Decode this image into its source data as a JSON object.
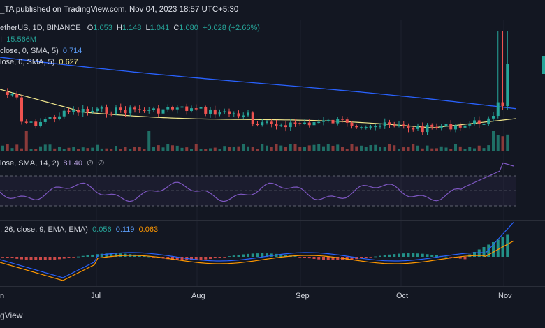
{
  "header": {
    "published": "_TA published on TradingView.com, Nov 04, 2023 18:57 UTC+5:30",
    "symbol": "etherUS, 1D, BINANCE",
    "o_label": "O",
    "o": "1.053",
    "h_label": "H",
    "h": "1.148",
    "l_label": "L",
    "l": "1.041",
    "c_label": "C",
    "c": "1.080",
    "change": "+0.028 (+2.66%)",
    "vol_label": "I",
    "vol": "15.566M",
    "sma1_label": "close, 0, SMA, 5)",
    "sma1_value": "0.714",
    "sma2_label": "lose, 0, SMA, 5)",
    "sma2_value": "0.627"
  },
  "rsi": {
    "label": "lose, SMA, 14, 2)",
    "value": "81.40",
    "extra1": "∅",
    "extra2": "∅"
  },
  "macd": {
    "label": ", 26, close, 9, EMA, EMA)",
    "v1": "0.056",
    "v2": "0.119",
    "v3": "0.063"
  },
  "axis": {
    "months": [
      "n",
      "Jul",
      "Aug",
      "Sep",
      "Oct",
      "Nov"
    ]
  },
  "footer": {
    "brand": "gView"
  },
  "colors": {
    "background": "#131722",
    "up": "#26a69a",
    "down": "#ef5350",
    "ma_blue": "#2962ff",
    "ma_yellow": "#f0e68c",
    "rsi_line": "#7e57c2",
    "macd_blue": "#2962ff",
    "signal_orange": "#ff9800"
  }
}
